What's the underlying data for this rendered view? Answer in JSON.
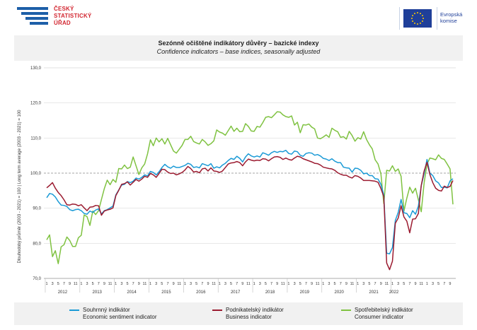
{
  "header": {
    "czso_name_lines": [
      "ČESKÝ",
      "STATISTICKÝ",
      "ÚŘAD"
    ],
    "eu_name_lines": [
      "Evropská",
      "komise"
    ]
  },
  "titles": {
    "cz": "Sezónně očištěné indikátory důvěry – bazické indexy",
    "en": "Confidence indicators – base indices, seasonally adjusted"
  },
  "colors": {
    "economic": "#1a9ad6",
    "business": "#9b1b30",
    "consumer": "#7fc241",
    "grid": "#d9d9d9",
    "baseline": "#a6a6a6"
  },
  "chart_data": {
    "type": "line",
    "ylabel": "Dlouhodobý průměr (2003 - 2021) = 100 | Long term average (2003 - 2021) = 100",
    "ylim": [
      70,
      130
    ],
    "yticks": [
      "70,0",
      "80,0",
      "90,0",
      "100,0",
      "110,0",
      "120,0",
      "130,0"
    ],
    "grid": true,
    "legend_placement": "bottom",
    "x_start": "2012-01",
    "x_end": "2022-01",
    "month_tick_labels": [
      "1",
      "3",
      "5",
      "7",
      "9",
      "11"
    ],
    "years": [
      "2012",
      "2013",
      "2014",
      "2015",
      "2016",
      "2017",
      "2018",
      "2019",
      "2020",
      "2021",
      "2022"
    ],
    "series": [
      {
        "key": "economic",
        "name": "Souhrnný indikátor",
        "name_en": "Economic sentiment indicator",
        "values": [
          93,
          94.2,
          94,
          93.2,
          91.9,
          90.9,
          90.8,
          90.5,
          89.6,
          89.3,
          89.6,
          89.7,
          89.3,
          88.5,
          88.3,
          89.2,
          88.8,
          89.5,
          89.8,
          88.4,
          89.3,
          89.6,
          90.1,
          90.6,
          93.8,
          95.2,
          96.6,
          96.8,
          97.6,
          97.3,
          97.7,
          98.6,
          98.3,
          98.8,
          99.5,
          99.2,
          100.5,
          100.2,
          99.5,
          100.4,
          101.6,
          102.5,
          101.8,
          101.4,
          102,
          101.6,
          101.6,
          101.9,
          102.2,
          102.8,
          102.5,
          101.6,
          101.8,
          101.5,
          102.7,
          102.4,
          102.1,
          102.7,
          101.4,
          101.8,
          101.5,
          102.3,
          102.8,
          103.6,
          104.2,
          103.9,
          104.8,
          104.2,
          103.2,
          104.6,
          105.5,
          104.9,
          104.6,
          104.9,
          104.6,
          105.8,
          105.5,
          105.1,
          105.8,
          106.2,
          105.9,
          106.2,
          106.1,
          106.5,
          105.6,
          105.4,
          106.3,
          106.1,
          105.1,
          104.8,
          105.6,
          105.8,
          105.7,
          105.1,
          105.3,
          104.9,
          104.2,
          104,
          103.6,
          104.1,
          103.4,
          103,
          103,
          101.7,
          101.5,
          101.4,
          100.3,
          101.4,
          101.3,
          100.8,
          99.8,
          100,
          99.3,
          99.3,
          98.4,
          98.3,
          96.8,
          93.8,
          77.2,
          77,
          78.8,
          86.5,
          88.8,
          92.5,
          88.7,
          88.5,
          87.3,
          89.3,
          88.3,
          90.6,
          96.4,
          99.8,
          103.9,
          100,
          99.3,
          97.8,
          97.2,
          95.9,
          96,
          95.8,
          97.8,
          98.4
        ],
        "label_left": "Souhrnný indikátor",
        "label_right": "Economic sentiment indicator"
      },
      {
        "key": "business",
        "name": "Podnikatelský indikátor",
        "name_en": "Business indicator",
        "values": [
          95.8,
          96.5,
          97.3,
          95.7,
          94.5,
          93.6,
          92.4,
          91,
          90.9,
          91.2,
          91.1,
          90.7,
          91,
          90.1,
          89.3,
          90.3,
          90.4,
          90.8,
          90.7,
          88,
          89.2,
          89.5,
          89.7,
          90.1,
          93.6,
          95.1,
          96.8,
          97,
          97.5,
          96.6,
          97.4,
          98.2,
          97.7,
          98.3,
          99.1,
          98.8,
          99.9,
          99.5,
          98.8,
          99.9,
          101.1,
          101,
          100.3,
          99.9,
          100,
          99.5,
          99.8,
          100.2,
          100.9,
          101.9,
          101.3,
          100.3,
          100.5,
          100.1,
          101.2,
          101.4,
          100.6,
          101.5,
          100.6,
          100.5,
          100.2,
          100.6,
          101.6,
          102.6,
          102.9,
          103,
          103.3,
          103,
          102.1,
          103.2,
          104,
          103.7,
          103.5,
          103.7,
          103.6,
          104.1,
          104,
          103.5,
          104.1,
          104.6,
          104.7,
          104.5,
          103.9,
          104.3,
          103.9,
          103.7,
          104.3,
          104.8,
          104.6,
          104.1,
          103.8,
          103.5,
          103.2,
          102.8,
          102.7,
          102.3,
          101.7,
          101.5,
          101.3,
          101.2,
          100.8,
          100.1,
          99.7,
          99.4,
          99.4,
          98.9,
          98.6,
          99.3,
          99.1,
          98.6,
          97.9,
          97.9,
          97.9,
          97.8,
          97.7,
          97.4,
          95.6,
          93.3,
          74.4,
          72.5,
          74.9,
          85.7,
          87.2,
          90.7,
          87.5,
          86.3,
          83,
          86.9,
          87,
          88.5,
          96.5,
          100.6,
          103.1,
          99.6,
          97.3,
          95.7,
          95.1,
          94.9,
          96.3,
          95.9,
          96.2,
          97.9
        ]
      },
      {
        "key": "consumer",
        "name": "Spotřebitelský indikátor",
        "name_en": "Consumer indicator",
        "values": [
          81,
          82.4,
          76.2,
          77.9,
          74.2,
          79,
          79.6,
          81.8,
          80.8,
          79.1,
          79.1,
          81.6,
          82.3,
          88.1,
          87.6,
          85.1,
          89.2,
          88.2,
          89.3,
          92.5,
          95.6,
          98,
          96.7,
          98.2,
          97.4,
          101.3,
          101.2,
          102.3,
          101.3,
          101.7,
          104.6,
          102.1,
          99.6,
          101.5,
          102.6,
          105.5,
          109.5,
          107.8,
          110,
          108.9,
          109.8,
          108.3,
          109.9,
          108.1,
          106.3,
          105.7,
          106.8,
          107.9,
          109.6,
          109.6,
          110.5,
          109,
          108.6,
          108.3,
          109.6,
          108.9,
          107.9,
          108.4,
          109.2,
          112.3,
          111.7,
          111.4,
          110.8,
          112.1,
          113.4,
          111.9,
          112.8,
          111.8,
          111.9,
          114.1,
          113.3,
          112,
          111.9,
          113.3,
          113.1,
          114.4,
          115.9,
          116.1,
          115.8,
          116.6,
          117.5,
          117.4,
          116.6,
          116.1,
          115.9,
          116.3,
          113.7,
          114.5,
          111.5,
          113.8,
          113.7,
          114,
          113.1,
          112.6,
          110,
          109.8,
          110.3,
          110.9,
          110.2,
          112.8,
          112.2,
          111.8,
          110.2,
          110.4,
          109.7,
          111.9,
          110.7,
          109.1,
          110.1,
          109.7,
          111.8,
          109.6,
          108.1,
          106.9,
          103.8,
          102.6,
          99.8,
          91.3,
          100.8,
          100.6,
          102.1,
          100.5,
          101.2,
          99.1,
          89.2,
          92.9,
          96,
          94.3,
          95.7,
          92.4,
          89,
          97.2,
          102.6,
          104.3,
          104.1,
          103.8,
          105.2,
          104.2,
          103.9,
          102.6,
          101.2,
          91.1
        ]
      }
    ]
  }
}
